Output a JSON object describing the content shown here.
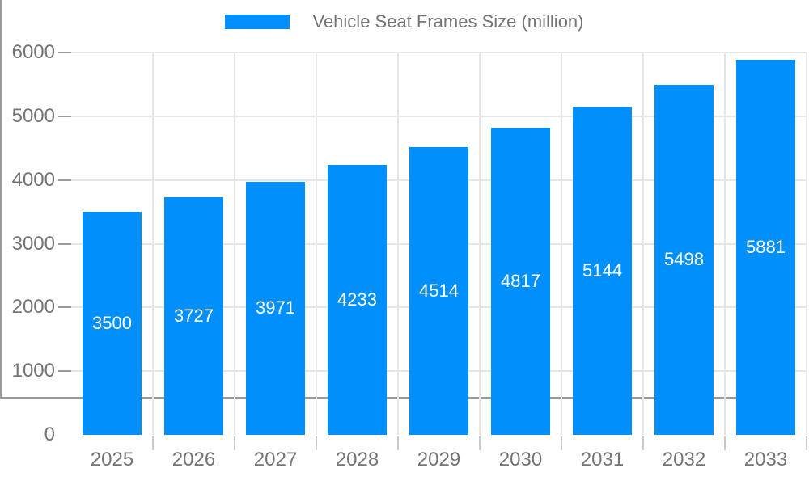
{
  "legend": {
    "label": "Vehicle Seat Frames Size (million)"
  },
  "chart_data": {
    "type": "bar",
    "title": "Vehicle Seat Frames Size (million)",
    "categories": [
      "2025",
      "2026",
      "2027",
      "2028",
      "2029",
      "2030",
      "2031",
      "2032",
      "2033"
    ],
    "series": [
      {
        "name": "Vehicle Seat Frames Size (million)",
        "values": [
          3500,
          3727,
          3971,
          4233,
          4514,
          4817,
          5144,
          5498,
          5881
        ]
      }
    ],
    "xlabel": "",
    "ylabel": "",
    "ylim": [
      0,
      6000
    ],
    "yticks": [
      0,
      1000,
      2000,
      3000,
      4000,
      5000,
      6000
    ],
    "grid": true,
    "legend_position": "top-center",
    "bar_label_position": "inside-center",
    "colors": {
      "bar": "#018FFB",
      "bar_label": "#FFFFFF",
      "axis_text": "#757575",
      "gridline": "#E6E6E6",
      "axis_line": "#999999",
      "tick": "#C9C9C9",
      "background": "#FFFFFF"
    }
  }
}
